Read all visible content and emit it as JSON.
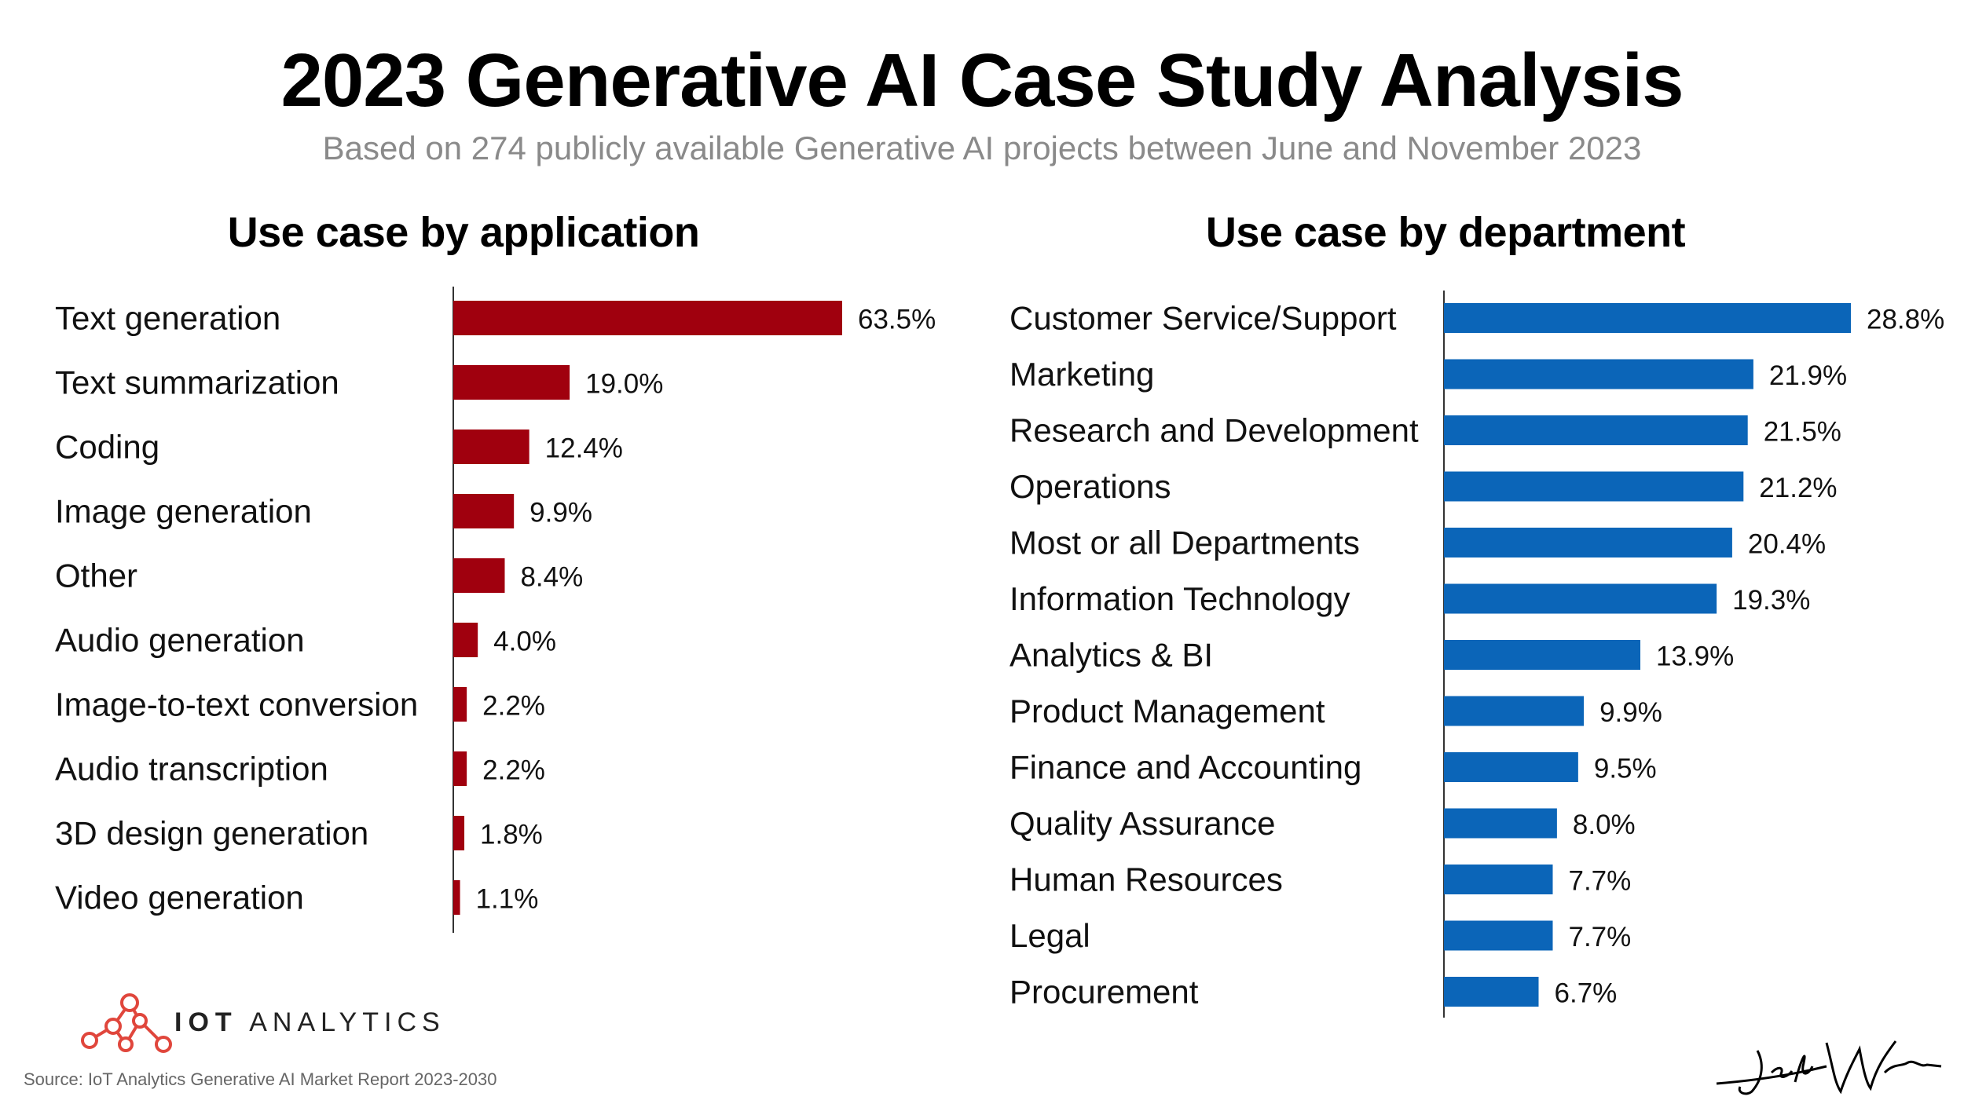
{
  "header": {
    "title": "2023 Generative AI Case Study Analysis",
    "subtitle": "Based on 274 publicly available Generative AI projects between June and November 2023"
  },
  "chart_data": [
    {
      "type": "bar",
      "orientation": "horizontal",
      "title": "Use case by application",
      "categories": [
        "Text generation",
        "Text summarization",
        "Coding",
        "Image generation",
        "Other",
        "Audio generation",
        "Image-to-text conversion",
        "Audio transcription",
        "3D design generation",
        "Video generation"
      ],
      "values": [
        63.5,
        19.0,
        12.4,
        9.9,
        8.4,
        4.0,
        2.2,
        2.2,
        1.8,
        1.1
      ],
      "value_labels": [
        "63.5%",
        "19.0%",
        "12.4%",
        "9.9%",
        "8.4%",
        "4.0%",
        "2.2%",
        "2.2%",
        "1.8%",
        "1.1%"
      ],
      "unit": "%",
      "color": "#a0000e",
      "xlim": [
        0,
        63.5
      ],
      "grid": false,
      "legend": "none"
    },
    {
      "type": "bar",
      "orientation": "horizontal",
      "title": "Use case by department",
      "categories": [
        "Customer Service/Support",
        "Marketing",
        "Research and Development",
        "Operations",
        "Most or all Departments",
        "Information Technology",
        "Analytics & BI",
        "Product Management",
        "Finance and Accounting",
        "Quality Assurance",
        "Human Resources",
        "Legal",
        "Procurement"
      ],
      "values": [
        28.8,
        21.9,
        21.5,
        21.2,
        20.4,
        19.3,
        13.9,
        9.9,
        9.5,
        8.0,
        7.7,
        7.7,
        6.7
      ],
      "value_labels": [
        "28.8%",
        "21.9%",
        "21.5%",
        "21.2%",
        "20.4%",
        "19.3%",
        "13.9%",
        "9.9%",
        "9.5%",
        "8.0%",
        "7.7%",
        "7.7%",
        "6.7%"
      ],
      "unit": "%",
      "color": "#0b65b8",
      "xlim": [
        0,
        28.8
      ],
      "grid": false,
      "legend": "none"
    }
  ],
  "footer": {
    "brand_strong": "IOT",
    "brand_light": "ANALYTICS",
    "source": "Source: IoT Analytics Generative AI Market Report 2023-2030",
    "logo_color": "#e0463c",
    "signature_text": "Jeff Winter"
  }
}
